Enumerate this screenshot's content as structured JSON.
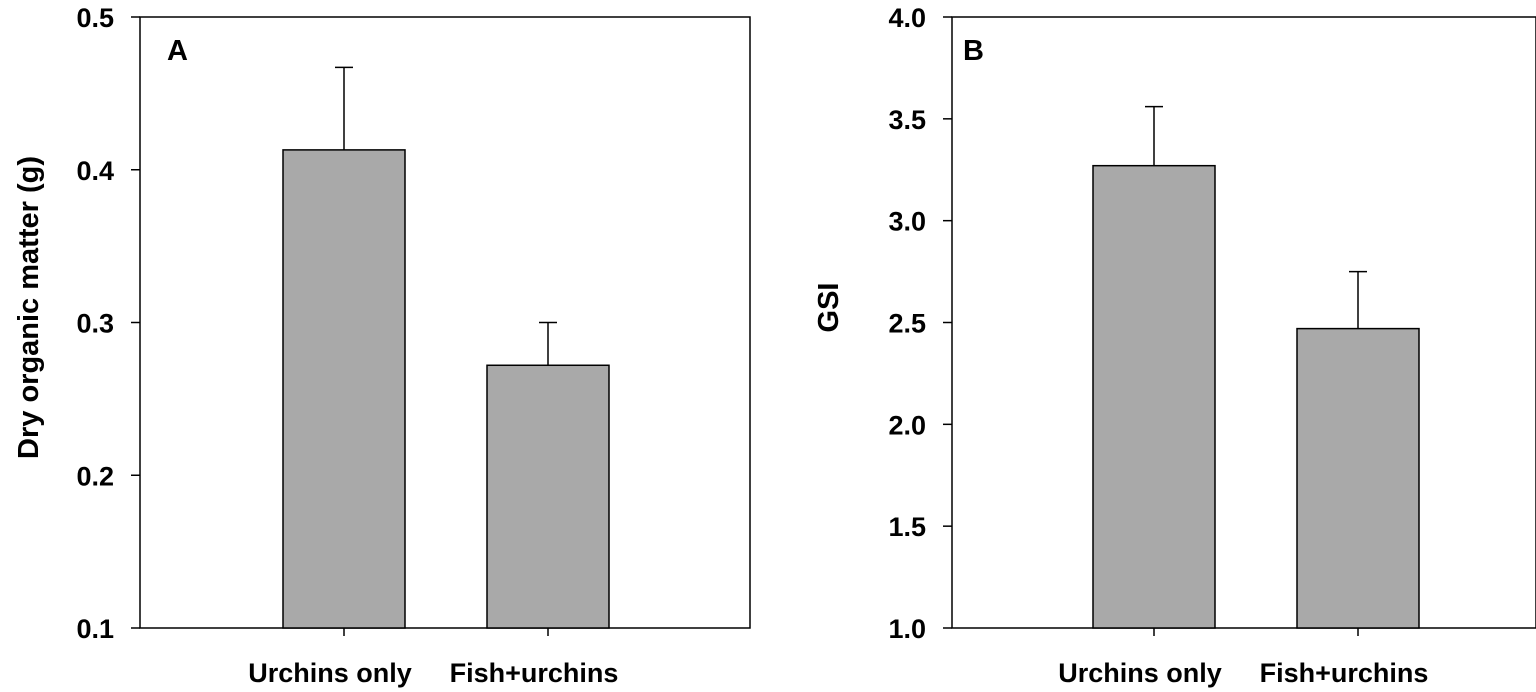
{
  "chart_data": [
    {
      "type": "bar",
      "panel_label": "A",
      "categories": [
        "Urchins only",
        "Fish+urchins"
      ],
      "values": [
        0.413,
        0.272
      ],
      "errors": [
        0.054,
        0.028
      ],
      "title": "",
      "xlabel": "",
      "ylabel": "Dry organic matter (g)",
      "ylim": [
        0.1,
        0.5
      ],
      "yticks": [
        "0.1",
        "0.2",
        "0.3",
        "0.4",
        "0.5"
      ],
      "bar_color": "#a9a9a9",
      "grid": false
    },
    {
      "type": "bar",
      "panel_label": "B",
      "categories": [
        "Urchins only",
        "Fish+urchins"
      ],
      "values": [
        3.27,
        2.47
      ],
      "errors": [
        0.29,
        0.28
      ],
      "title": "",
      "xlabel": "",
      "ylabel": "GSI",
      "ylim": [
        1.0,
        4.0
      ],
      "yticks": [
        "1.0",
        "1.5",
        "2.0",
        "2.5",
        "3.0",
        "3.5",
        "4.0"
      ],
      "bar_color": "#a9a9a9",
      "grid": false
    }
  ]
}
